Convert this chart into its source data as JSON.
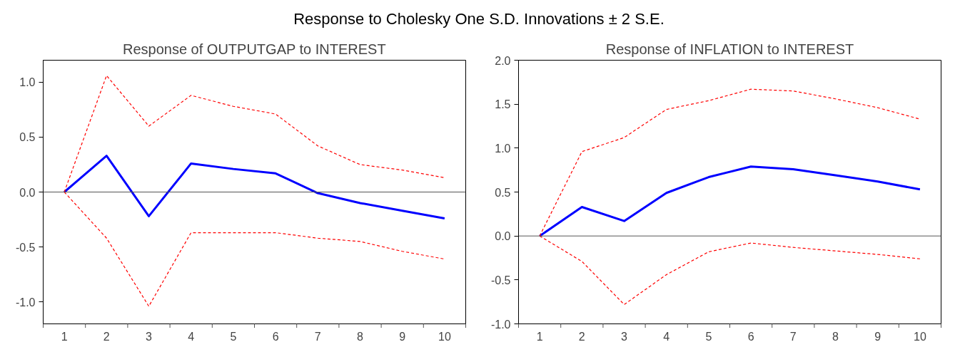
{
  "chart_data": [
    {
      "type": "line",
      "title": "Response of OUTPUTGAP to INTEREST",
      "annotations": [
        "Response to Cholesky One S.D. Innovations ± 2 S.E."
      ],
      "categories": [
        "1",
        "2",
        "3",
        "4",
        "5",
        "6",
        "7",
        "8",
        "9",
        "10"
      ],
      "ylim": [
        -1.2,
        1.2
      ],
      "yticks": [
        {
          "value": -1.0,
          "label": "-1.0"
        },
        {
          "value": -0.5,
          "label": "-0.5"
        },
        {
          "value": 0.0,
          "label": "0.0"
        },
        {
          "value": 0.5,
          "label": "0.5"
        },
        {
          "value": 1.0,
          "label": "1.0"
        }
      ],
      "grid": false,
      "ref_lines": [
        {
          "axis": "y",
          "value": 0,
          "color": "#555555"
        }
      ],
      "series": [
        {
          "color": "#0000ff",
          "line_style": "solid",
          "values": [
            0,
            0.33,
            -0.22,
            0.26,
            0.21,
            0.17,
            -0.01,
            -0.1,
            -0.17,
            -0.24
          ]
        },
        {
          "color": "#ff0000",
          "line_style": "dashed",
          "values": [
            0,
            1.06,
            0.6,
            0.88,
            0.78,
            0.71,
            0.42,
            0.25,
            0.2,
            0.13
          ]
        },
        {
          "color": "#ff0000",
          "line_style": "dashed",
          "values": [
            0,
            -0.42,
            -1.04,
            -0.37,
            -0.37,
            -0.37,
            -0.42,
            -0.45,
            -0.54,
            -0.61
          ]
        }
      ]
    },
    {
      "type": "line",
      "title": "Response of INFLATION to INTEREST",
      "categories": [
        "1",
        "2",
        "3",
        "4",
        "5",
        "6",
        "7",
        "8",
        "9",
        "10"
      ],
      "ylim": [
        -1.0,
        2.0
      ],
      "yticks": [
        {
          "value": -1.0,
          "label": "-1.0"
        },
        {
          "value": -0.5,
          "label": "-0.5"
        },
        {
          "value": 0.0,
          "label": "0.0"
        },
        {
          "value": 0.5,
          "label": "0.5"
        },
        {
          "value": 1.0,
          "label": "1.0"
        },
        {
          "value": 1.5,
          "label": "1.5"
        },
        {
          "value": 2.0,
          "label": "2.0"
        }
      ],
      "grid": false,
      "ref_lines": [
        {
          "axis": "y",
          "value": 0,
          "color": "#555555"
        }
      ],
      "series": [
        {
          "color": "#0000ff",
          "line_style": "solid",
          "values": [
            0,
            0.33,
            0.17,
            0.49,
            0.67,
            0.79,
            0.76,
            0.69,
            0.62,
            0.53
          ]
        },
        {
          "color": "#ff0000",
          "line_style": "dashed",
          "values": [
            0,
            0.96,
            1.12,
            1.44,
            1.54,
            1.67,
            1.65,
            1.56,
            1.46,
            1.33
          ]
        },
        {
          "color": "#ff0000",
          "line_style": "dashed",
          "values": [
            0,
            -0.29,
            -0.78,
            -0.44,
            -0.18,
            -0.08,
            -0.13,
            -0.17,
            -0.21,
            -0.26
          ]
        }
      ]
    }
  ]
}
